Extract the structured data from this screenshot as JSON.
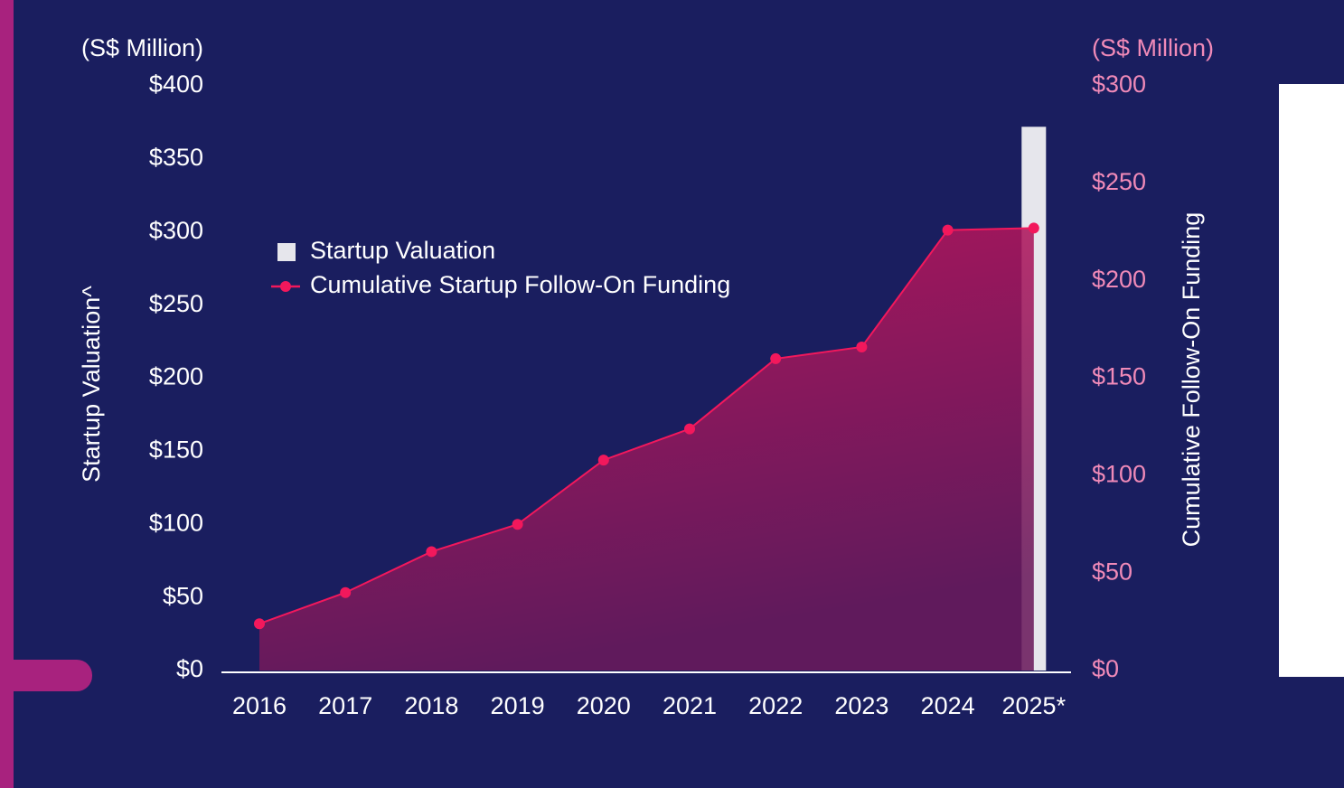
{
  "chart_data": {
    "type": "combo",
    "y_unit_label": "(S$ Million)",
    "y2_unit_label": "(S$ Million)",
    "ylabel": "Startup Valuation^",
    "y2label": "Cumulative Follow-On Funding",
    "categories": [
      "2016",
      "2017",
      "2018",
      "2019",
      "2020",
      "2021",
      "2022",
      "2023",
      "2024",
      "2025*"
    ],
    "series": [
      {
        "name": "Startup Valuation",
        "type": "bar",
        "color": "#e6e6ec",
        "values": [
          null,
          null,
          null,
          null,
          null,
          null,
          null,
          null,
          null,
          372
        ]
      },
      {
        "name": "Cumulative Startup Follow-On Funding",
        "type": "line",
        "axis": "y2",
        "color": "#f2185c",
        "values": [
          24,
          40,
          61,
          75,
          108,
          124,
          160,
          166,
          226,
          227
        ]
      }
    ],
    "ylim": [
      0,
      400
    ],
    "yticks": [
      {
        "value": 0,
        "label": "$0"
      },
      {
        "value": 50,
        "label": "$50"
      },
      {
        "value": 100,
        "label": "$100"
      },
      {
        "value": 150,
        "label": "$150"
      },
      {
        "value": 200,
        "label": "$200"
      },
      {
        "value": 250,
        "label": "$250"
      },
      {
        "value": 300,
        "label": "$300"
      },
      {
        "value": 350,
        "label": "$350"
      },
      {
        "value": 400,
        "label": "$400"
      }
    ],
    "y2lim": [
      0,
      300
    ],
    "y2ticks": [
      {
        "value": 0,
        "label": "$0"
      },
      {
        "value": 50,
        "label": "$50"
      },
      {
        "value": 100,
        "label": "$100"
      },
      {
        "value": 150,
        "label": "$150"
      },
      {
        "value": 200,
        "label": "$200"
      },
      {
        "value": 250,
        "label": "$250"
      },
      {
        "value": 300,
        "label": "$300"
      }
    ],
    "legend": "upper left"
  }
}
